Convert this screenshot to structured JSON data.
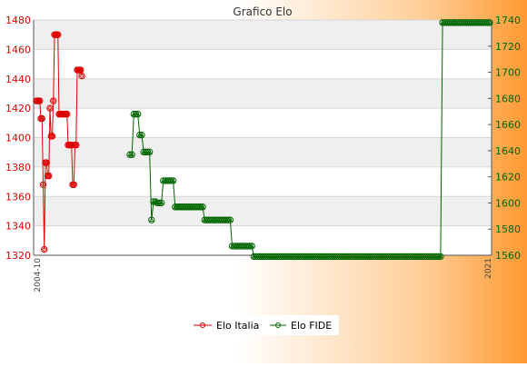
{
  "chart_data": {
    "type": "line",
    "title": "Grafico Elo",
    "y_left": {
      "min": 1320,
      "max": 1480,
      "step": 20,
      "ticks": [
        1320,
        1340,
        1360,
        1380,
        1400,
        1420,
        1440,
        1460,
        1480
      ],
      "color": "#dd0000"
    },
    "y_right": {
      "min": 1560,
      "max": 1740,
      "step": 20,
      "ticks": [
        1560,
        1580,
        1600,
        1620,
        1640,
        1660,
        1680,
        1700,
        1720,
        1740
      ],
      "color": "#006600"
    },
    "grid": true,
    "legend": "bottom-center",
    "series": [
      {
        "name": "Elo Italia",
        "axis": "left",
        "color": "#dd0000",
        "values": [
          1425,
          1425,
          1425,
          1425,
          1413,
          1413,
          1368,
          1324,
          1383,
          1383,
          1374,
          1374,
          1420,
          1401,
          1401,
          1425,
          1470,
          1470,
          1470,
          1470,
          1416,
          1416,
          1416,
          1416,
          1416,
          1416,
          1416,
          1416,
          1395,
          1395,
          1395,
          1395,
          1368,
          1368,
          1395,
          1395,
          1446,
          1446,
          1446,
          1446,
          1442
        ]
      },
      {
        "name": "Elo FIDE",
        "axis": "right",
        "color": "#006600",
        "values": [
          1637,
          1637,
          1668,
          1668,
          1668,
          1652,
          1652,
          1639,
          1639,
          1639,
          1639,
          1587,
          1601,
          1601,
          1600,
          1600,
          1600,
          1617,
          1617,
          1617,
          1617,
          1617,
          1617,
          1597,
          1597,
          1597,
          1597,
          1597,
          1597,
          1597,
          1597,
          1597,
          1597,
          1597,
          1597,
          1597,
          1597,
          1597,
          1587,
          1587,
          1587,
          1587,
          1587,
          1587,
          1587,
          1587,
          1587,
          1587,
          1587,
          1587,
          1587,
          1587,
          1567,
          1567,
          1567,
          1567,
          1567,
          1567,
          1567,
          1567,
          1567,
          1567,
          1567,
          1559,
          1559,
          1559,
          1559,
          1559,
          1559,
          1559,
          1559,
          1559,
          1559,
          1559,
          1559,
          1559,
          1559,
          1559,
          1559,
          1559,
          1559,
          1559,
          1559,
          1559,
          1559,
          1559,
          1559,
          1559,
          1559,
          1559,
          1559,
          1559,
          1559,
          1559,
          1559,
          1559,
          1559,
          1559,
          1559,
          1559,
          1559,
          1559,
          1559,
          1559,
          1559,
          1559,
          1559,
          1559,
          1559,
          1559,
          1559,
          1559,
          1559,
          1559,
          1559,
          1559,
          1559,
          1559,
          1559,
          1559,
          1559,
          1559,
          1559,
          1559,
          1559,
          1559,
          1559,
          1559,
          1559,
          1559,
          1559,
          1559,
          1559,
          1559,
          1559,
          1559,
          1559,
          1559,
          1559,
          1559,
          1559,
          1559,
          1559,
          1559,
          1559,
          1559,
          1559,
          1559,
          1559,
          1559,
          1559,
          1559,
          1559,
          1559,
          1559,
          1559,
          1559,
          1559,
          1559,
          1738,
          1738,
          1738,
          1738,
          1738,
          1738,
          1738,
          1738,
          1738,
          1738,
          1738,
          1738,
          1738,
          1738,
          1738,
          1738,
          1738,
          1738,
          1738,
          1738,
          1738,
          1738,
          1738,
          1738,
          1738
        ]
      }
    ],
    "x_first": "2004-10",
    "x_last": "2021"
  }
}
